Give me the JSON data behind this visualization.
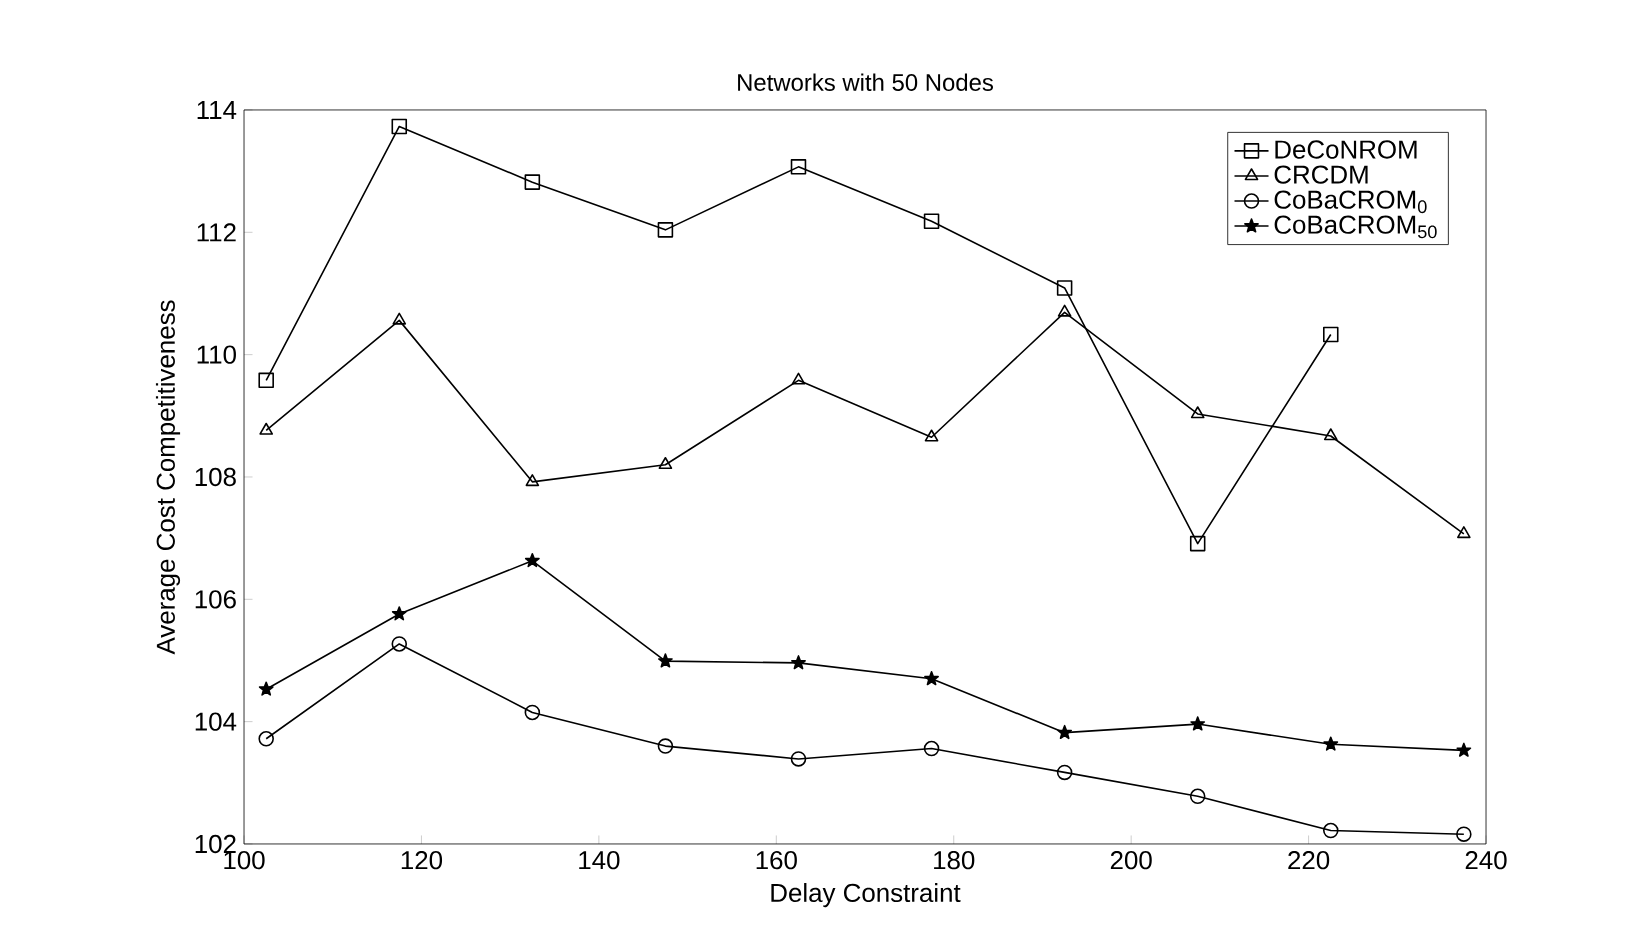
{
  "chart_data": {
    "type": "line",
    "title": "Networks with 50 Nodes",
    "xlabel": "Delay Constraint",
    "ylabel": "Average Cost Competitiveness",
    "x": [
      102.5,
      117.5,
      132.5,
      147.5,
      162.5,
      177.5,
      192.5,
      207.5,
      222.5,
      237.5
    ],
    "series": [
      {
        "name": "DeCoNROM",
        "color": "#000000",
        "marker": "square",
        "values": [
          109.58,
          113.73,
          112.82,
          112.04,
          113.07,
          112.18,
          111.09,
          106.91,
          110.33,
          null
        ]
      },
      {
        "name": "CRCDM",
        "color": "#000000",
        "marker": "triangle",
        "values": [
          108.76,
          110.56,
          107.92,
          108.2,
          109.58,
          108.65,
          110.69,
          109.03,
          108.67,
          107.07
        ]
      },
      {
        "name": "CoBaCROM$_{0}$",
        "color": "#000000",
        "marker": "circle",
        "values": [
          103.72,
          105.27,
          104.15,
          103.6,
          103.39,
          103.56,
          103.17,
          102.78,
          102.22,
          102.16
        ]
      },
      {
        "name": "CoBaCROM$_{50}$",
        "color": "#000000",
        "marker": "star",
        "values": [
          104.53,
          105.76,
          106.63,
          104.99,
          104.96,
          104.7,
          103.82,
          103.96,
          103.63,
          103.53
        ]
      }
    ],
    "xlim": [
      100,
      240
    ],
    "ylim": [
      102,
      114
    ],
    "xticks": [
      100,
      120,
      140,
      160,
      180,
      200,
      220,
      240
    ],
    "yticks": [
      102,
      104,
      106,
      108,
      110,
      112,
      114
    ],
    "grid": false,
    "legend": "top right",
    "line_style": "solid"
  }
}
